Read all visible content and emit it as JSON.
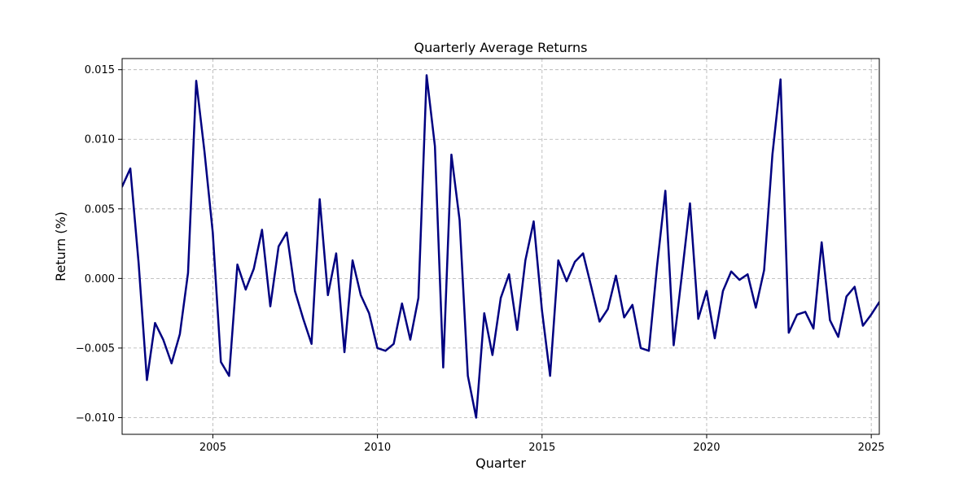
{
  "chart_data": {
    "type": "line",
    "title": "Quarterly Average Returns",
    "xlabel": "Quarter",
    "ylabel": "Return (%)",
    "xlim": [
      "2002-03-31",
      "2025-03-31"
    ],
    "ylim": [
      -0.0112,
      0.0158
    ],
    "grid": true,
    "x_ticks": [
      "2005",
      "2010",
      "2015",
      "2020",
      "2025"
    ],
    "y_ticks": [
      "−0.010",
      "−0.005",
      "0.000",
      "0.005",
      "0.010",
      "0.015"
    ],
    "series": [
      {
        "color": "#000080",
        "x": [
          "2002-03-31",
          "2002-06-30",
          "2002-09-30",
          "2002-12-31",
          "2003-03-31",
          "2003-06-30",
          "2003-09-30",
          "2003-12-31",
          "2004-03-31",
          "2004-06-30",
          "2004-09-30",
          "2004-12-31",
          "2005-03-31",
          "2005-06-30",
          "2005-09-30",
          "2005-12-31",
          "2006-03-31",
          "2006-06-30",
          "2006-09-30",
          "2006-12-31",
          "2007-03-31",
          "2007-06-30",
          "2007-09-30",
          "2007-12-31",
          "2008-03-31",
          "2008-06-30",
          "2008-09-30",
          "2008-12-31",
          "2009-03-31",
          "2009-06-30",
          "2009-09-30",
          "2009-12-31",
          "2010-03-31",
          "2010-06-30",
          "2010-09-30",
          "2010-12-31",
          "2011-03-31",
          "2011-06-30",
          "2011-09-30",
          "2011-12-31",
          "2012-03-31",
          "2012-06-30",
          "2012-09-30",
          "2012-12-31",
          "2013-03-31",
          "2013-06-30",
          "2013-09-30",
          "2013-12-31",
          "2014-03-31",
          "2014-06-30",
          "2014-09-30",
          "2014-12-31",
          "2015-03-31",
          "2015-06-30",
          "2015-09-30",
          "2015-12-31",
          "2016-03-31",
          "2016-06-30",
          "2016-09-30",
          "2016-12-31",
          "2017-03-31",
          "2017-06-30",
          "2017-09-30",
          "2017-12-31",
          "2018-03-31",
          "2018-06-30",
          "2018-09-30",
          "2018-12-31",
          "2019-03-31",
          "2019-06-30",
          "2019-09-30",
          "2019-12-31",
          "2020-03-31",
          "2020-06-30",
          "2020-09-30",
          "2020-12-31",
          "2021-03-31",
          "2021-06-30",
          "2021-09-30",
          "2021-12-31",
          "2022-03-31",
          "2022-06-30",
          "2022-09-30",
          "2022-12-31",
          "2023-03-31",
          "2023-06-30",
          "2023-09-30",
          "2023-12-31",
          "2024-03-31",
          "2024-06-30",
          "2024-09-30",
          "2024-12-31",
          "2025-03-31"
        ],
        "y": [
          0.0066,
          0.0079,
          0.0011,
          -0.0073,
          -0.0032,
          -0.0044,
          -0.0061,
          -0.004,
          0.0004,
          0.0142,
          0.0091,
          0.0033,
          -0.006,
          -0.007,
          0.001,
          -0.0008,
          0.0007,
          0.0035,
          -0.002,
          0.0023,
          0.0033,
          -0.0009,
          -0.0029,
          -0.0047,
          0.0057,
          -0.0012,
          0.0018,
          -0.0053,
          0.0013,
          -0.0012,
          -0.0025,
          -0.005,
          -0.0052,
          -0.0047,
          -0.0018,
          -0.0044,
          -0.0014,
          0.0146,
          0.0095,
          -0.0064,
          0.0089,
          0.0042,
          -0.007,
          -0.01,
          -0.0025,
          -0.0055,
          -0.0014,
          0.0003,
          -0.0037,
          0.0013,
          0.0041,
          -0.0023,
          -0.007,
          0.0013,
          -0.0002,
          0.0012,
          0.0018,
          -0.0006,
          -0.0031,
          -0.0022,
          0.0002,
          -0.0028,
          -0.0019,
          -0.005,
          -0.0052,
          0.0009,
          0.0063,
          -0.0048,
          0.0002,
          0.0054,
          -0.0029,
          -0.0009,
          -0.0043,
          -0.0009,
          0.0005,
          -0.0001,
          0.0003,
          -0.0021,
          0.0006,
          0.0089,
          0.0143,
          -0.0039,
          -0.0026,
          -0.0024,
          -0.0036,
          0.0026,
          -0.003,
          -0.0042,
          -0.0013,
          -0.0006,
          -0.0034,
          -0.0026,
          -0.0017
        ]
      }
    ]
  }
}
